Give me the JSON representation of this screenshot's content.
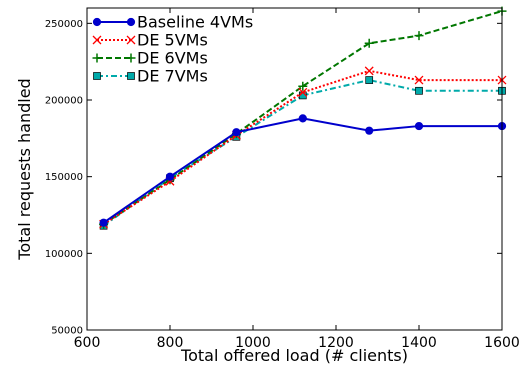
{
  "chart_data": {
    "type": "line",
    "xlabel": "Total offered load (# clients)",
    "ylabel": "Total requests handled",
    "xlim": [
      600,
      1600
    ],
    "ylim": [
      50000,
      260000
    ],
    "xticks": [
      600,
      800,
      1000,
      1200,
      1400,
      1600
    ],
    "yticks": [
      50000,
      100000,
      150000,
      200000,
      250000
    ],
    "xtick_labels": [
      "600",
      "800",
      "1000",
      "1200",
      "1400",
      "1600"
    ],
    "ytick_labels": [
      "50000",
      "100000",
      "150000",
      "200000",
      "250000"
    ],
    "grid": false,
    "legend_position": "top-left",
    "series": [
      {
        "name": "Baseline 4VMs",
        "color": "#0000cc",
        "line_style": "solid",
        "marker": "circle",
        "x": [
          640,
          800,
          960,
          1120,
          1280,
          1400,
          1600
        ],
        "y": [
          120000,
          150000,
          179000,
          188000,
          180000,
          183000,
          183000
        ]
      },
      {
        "name": "DE 5VMs",
        "color": "#ff0000",
        "line_style": "dotted",
        "marker": "x",
        "x": [
          640,
          800,
          960,
          1120,
          1280,
          1400,
          1600
        ],
        "y": [
          119000,
          147000,
          177000,
          205000,
          219000,
          213000,
          213000
        ]
      },
      {
        "name": "DE 6VMs",
        "color": "#007700",
        "line_style": "dashed",
        "marker": "plus",
        "x": [
          640,
          800,
          960,
          1120,
          1280,
          1400,
          1600
        ],
        "y": [
          119000,
          148000,
          178000,
          209000,
          237000,
          242000,
          258000
        ]
      },
      {
        "name": "DE 7VMs",
        "color": "#00aaaa",
        "line_style": "dashdot",
        "marker": "square",
        "x": [
          640,
          800,
          960,
          1120,
          1280,
          1400,
          1600
        ],
        "y": [
          118000,
          149000,
          176000,
          203000,
          213000,
          206000,
          206000
        ]
      }
    ]
  }
}
